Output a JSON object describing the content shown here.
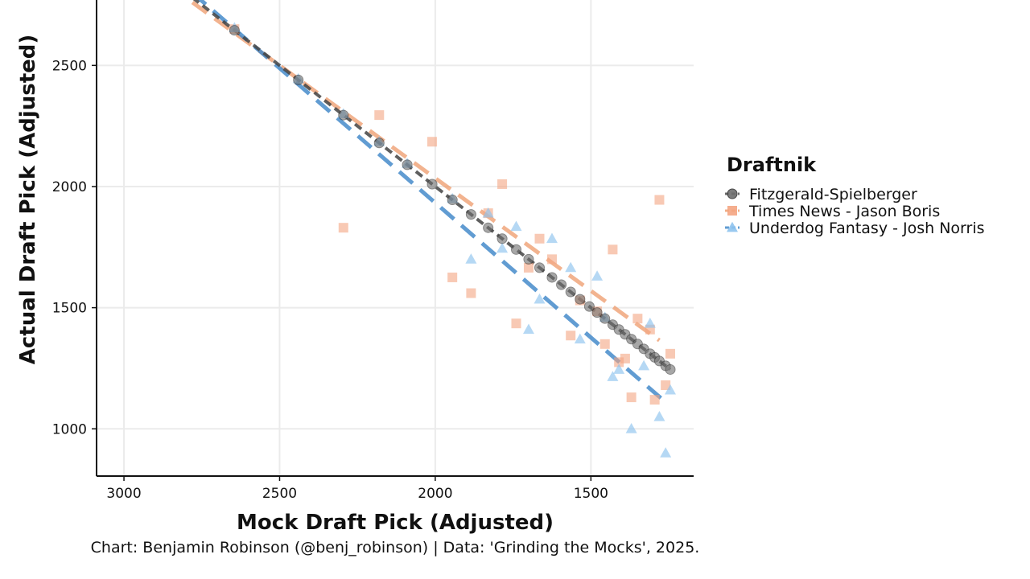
{
  "chart_data": {
    "type": "scatter",
    "title": "",
    "xlabel": "Mock Draft Pick (Adjusted)",
    "ylabel": "Actual Draft Pick (Adjusted)",
    "caption": "Chart: Benjamin Robinson (@benj_robinson) | Data: 'Grinding the Mocks', 2025.",
    "x_reversed": true,
    "xlim": [
      3088,
      1170
    ],
    "ylim": [
      805,
      2770
    ],
    "x_ticks": [
      3000,
      2500,
      2000,
      1500
    ],
    "y_ticks": [
      2500,
      2000,
      1500,
      1000
    ],
    "grid": true,
    "legend": {
      "title": "Draftnik",
      "position": "right"
    },
    "series": [
      {
        "name": "Fitzgerald-Spielberger",
        "marker": "circle",
        "color": "#555555",
        "points": [
          [
            2645,
            2645
          ],
          [
            2440,
            2440
          ],
          [
            2295,
            2295
          ],
          [
            2180,
            2180
          ],
          [
            2090,
            2090
          ],
          [
            2010,
            2010
          ],
          [
            1945,
            1945
          ],
          [
            1885,
            1885
          ],
          [
            1830,
            1830
          ],
          [
            1785,
            1785
          ],
          [
            1740,
            1740
          ],
          [
            1700,
            1700
          ],
          [
            1665,
            1665
          ],
          [
            1625,
            1625
          ],
          [
            1595,
            1595
          ],
          [
            1565,
            1565
          ],
          [
            1535,
            1535
          ],
          [
            1505,
            1505
          ],
          [
            1480,
            1480
          ],
          [
            1455,
            1455
          ],
          [
            1430,
            1430
          ],
          [
            1410,
            1410
          ],
          [
            1390,
            1390
          ],
          [
            1370,
            1370
          ],
          [
            1350,
            1350
          ],
          [
            1330,
            1330
          ],
          [
            1310,
            1310
          ],
          [
            1295,
            1295
          ],
          [
            1280,
            1280
          ],
          [
            1260,
            1260
          ],
          [
            1245,
            1245
          ]
        ],
        "trend": [
          [
            2780,
            2780
          ],
          [
            1245,
            1245
          ]
        ]
      },
      {
        "name": "Times News - Jason Boris",
        "marker": "square",
        "color": "#F4A582",
        "points": [
          [
            2645,
            2650
          ],
          [
            2295,
            1830
          ],
          [
            2180,
            2295
          ],
          [
            2010,
            2185
          ],
          [
            1945,
            1625
          ],
          [
            1885,
            1560
          ],
          [
            1830,
            1890
          ],
          [
            1785,
            2010
          ],
          [
            1740,
            1435
          ],
          [
            1700,
            1665
          ],
          [
            1665,
            1785
          ],
          [
            1625,
            1700
          ],
          [
            1565,
            1385
          ],
          [
            1535,
            1530
          ],
          [
            1480,
            1485
          ],
          [
            1455,
            1350
          ],
          [
            1430,
            1740
          ],
          [
            1410,
            1275
          ],
          [
            1390,
            1290
          ],
          [
            1370,
            1130
          ],
          [
            1350,
            1455
          ],
          [
            1310,
            1410
          ],
          [
            1295,
            1120
          ],
          [
            1280,
            1945
          ],
          [
            1260,
            1180
          ],
          [
            1245,
            1310
          ]
        ],
        "trend": [
          [
            2780,
            2760
          ],
          [
            1280,
            1365
          ]
        ]
      },
      {
        "name": "Underdog Fantasy - Josh Norris",
        "marker": "triangle",
        "color": "#9ECAE9",
        "trend_color": "#3A84C8",
        "points": [
          [
            2645,
            2655
          ],
          [
            2440,
            2445
          ],
          [
            2295,
            2300
          ],
          [
            2180,
            2185
          ],
          [
            2090,
            2095
          ],
          [
            1945,
            1950
          ],
          [
            1885,
            1700
          ],
          [
            1830,
            1890
          ],
          [
            1785,
            1745
          ],
          [
            1740,
            1835
          ],
          [
            1700,
            1410
          ],
          [
            1665,
            1535
          ],
          [
            1625,
            1785
          ],
          [
            1565,
            1665
          ],
          [
            1535,
            1370
          ],
          [
            1480,
            1630
          ],
          [
            1455,
            1460
          ],
          [
            1430,
            1215
          ],
          [
            1410,
            1245
          ],
          [
            1370,
            1000
          ],
          [
            1330,
            1260
          ],
          [
            1310,
            1435
          ],
          [
            1280,
            1050
          ],
          [
            1260,
            900
          ],
          [
            1245,
            1160
          ]
        ],
        "trend": [
          [
            2780,
            2800
          ],
          [
            1260,
            1110
          ]
        ]
      }
    ]
  }
}
